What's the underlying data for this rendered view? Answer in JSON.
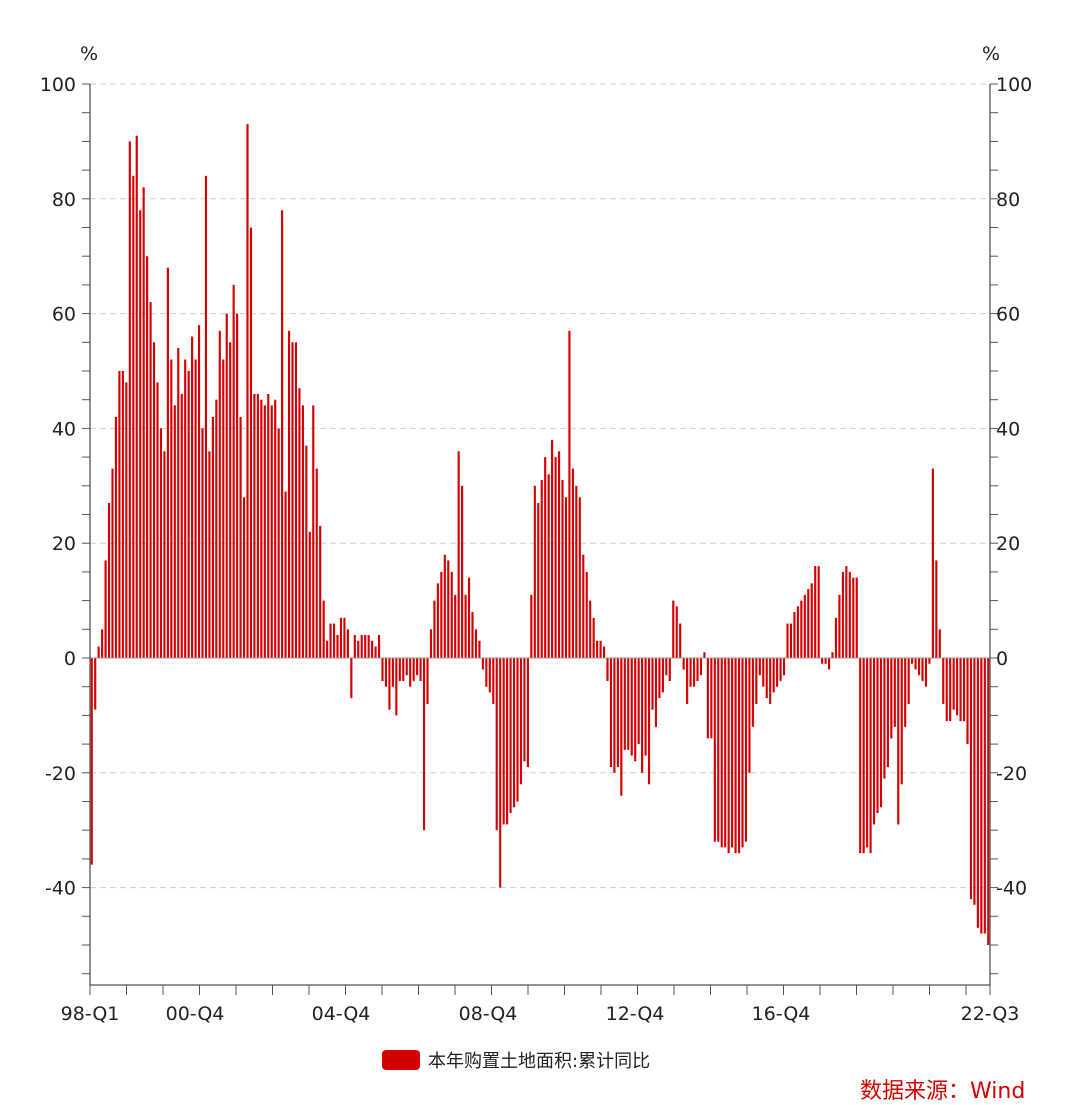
{
  "chart_data": {
    "type": "bar",
    "series": [
      {
        "name": "本年购置土地面积:累计同比",
        "values": [
          -36,
          -9,
          2,
          5,
          17,
          27,
          33,
          42,
          50,
          50,
          48,
          90,
          84,
          91,
          78,
          82,
          70,
          62,
          55,
          48,
          40,
          36,
          68,
          52,
          44,
          54,
          46,
          52,
          50,
          56,
          52,
          58,
          40,
          84,
          36,
          42,
          45,
          57,
          52,
          60,
          55,
          65,
          60,
          42,
          28,
          93,
          75,
          46,
          46,
          45,
          44,
          46,
          44,
          45,
          40,
          78,
          29,
          57,
          55,
          55,
          47,
          44,
          37,
          22,
          44,
          33,
          23,
          10,
          3,
          6,
          6,
          4,
          7,
          7,
          5,
          -7,
          4,
          3,
          4,
          4,
          4,
          3,
          2,
          4,
          -4,
          -5,
          -9,
          -5,
          -10,
          -4,
          -4,
          -3,
          -5,
          -4,
          -3,
          -4,
          -30,
          -8,
          5,
          10,
          13,
          15,
          18,
          17,
          15,
          11,
          36,
          30,
          11,
          14,
          8,
          5,
          3,
          -2,
          -5,
          -6,
          -8,
          -30,
          -40,
          -29,
          -29,
          -27,
          -26,
          -25,
          -22,
          -18,
          -19,
          11,
          30,
          27,
          31,
          35,
          32,
          38,
          35,
          36,
          31,
          28,
          57,
          33,
          30,
          28,
          18,
          15,
          10,
          7,
          3,
          3,
          2,
          -4,
          -19,
          -20,
          -19,
          -24,
          -16,
          -16,
          -17,
          -18,
          -15,
          -20,
          -17,
          -22,
          -9,
          -12,
          -7,
          -6,
          -3,
          -4,
          10,
          9,
          6,
          -2,
          -8,
          -5,
          -5,
          -4,
          -3,
          1,
          -14,
          -14,
          -32,
          -32,
          -33,
          -33,
          -34,
          -33,
          -34,
          -34,
          -33,
          -32,
          -20,
          -12,
          -8,
          -3,
          -5,
          -7,
          -8,
          -6,
          -5,
          -4,
          -3,
          6,
          6,
          8,
          9,
          10,
          11,
          12,
          13,
          16,
          16,
          -1,
          -1,
          -2,
          1,
          7,
          11,
          15,
          16,
          15,
          14,
          14,
          -34,
          -34,
          -33,
          -34,
          -29,
          -27,
          -26,
          -21,
          -19,
          -14,
          -12,
          -29,
          -22,
          -12,
          -8,
          -1,
          -2,
          -3,
          -4,
          -5,
          -1,
          33,
          17,
          5,
          -8,
          -11,
          -11,
          -9,
          -10,
          -11,
          -11,
          -15,
          -42,
          -43,
          -47,
          -48,
          -48,
          -50
        ]
      }
    ],
    "x_tick_labels": [
      "98-Q1",
      "00-Q4",
      "04-Q4",
      "08-Q4",
      "12-Q4",
      "16-Q4",
      "22-Q3"
    ],
    "y_ticks": [
      -40,
      -20,
      0,
      20,
      40,
      60,
      80,
      100
    ],
    "ylim": [
      -57,
      100
    ],
    "y_unit_left": "%",
    "y_unit_right": "%",
    "grid": true,
    "legend_position": "bottom",
    "bar_color": "#d40000"
  },
  "legend": {
    "label": "本年购置土地面积:累计同比"
  },
  "source": "数据来源：Wind"
}
